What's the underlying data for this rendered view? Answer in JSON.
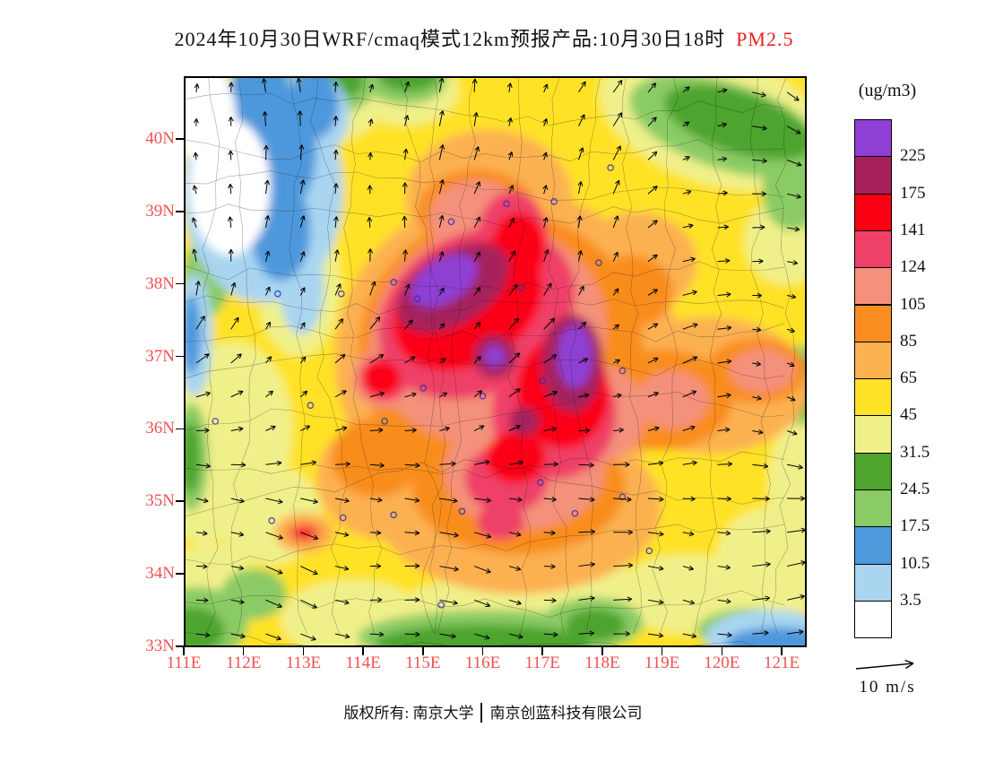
{
  "title": {
    "text": "2024年10月30日WRF/cmaq模式12km预报产品:10月30日18时",
    "pollutant": "PM2.5"
  },
  "axes": {
    "lat_ticks": [
      "40N",
      "39N",
      "38N",
      "37N",
      "36N",
      "35N",
      "34N",
      "33N"
    ],
    "lon_ticks": [
      "111E",
      "112E",
      "113E",
      "114E",
      "115E",
      "116E",
      "117E",
      "118E",
      "119E",
      "120E",
      "121E"
    ],
    "tick_color": "#f25050"
  },
  "colorbar": {
    "unit": "(ug/m3)",
    "levels": [
      "225",
      "175",
      "141",
      "124",
      "105",
      "85",
      "65",
      "45",
      "31.5",
      "24.5",
      "17.5",
      "10.5",
      "3.5"
    ],
    "colors": [
      "#8f3fd4",
      "#a6215c",
      "#fb0012",
      "#ef4067",
      "#f4917c",
      "#f98d1f",
      "#fcb151",
      "#ffe226",
      "#f0f08a",
      "#4ea42d",
      "#8bcb65",
      "#4e98dc",
      "#a9d5f1",
      "#ffffff"
    ]
  },
  "wind_legend": {
    "label": "10 m/s"
  },
  "footer": {
    "left": "版权所有: 南京大学",
    "right": "南京创蓝科技有限公司"
  },
  "map": {
    "extent": {
      "lon_min": 111,
      "lon_max": 121.42,
      "lat_min": 33.0,
      "lat_max": 40.87
    },
    "base_color": "#ffe226",
    "heat_blobs": [
      [
        111.8,
        36.0,
        1.0,
        1.2,
        0,
        "#f0f08a"
      ],
      [
        112.4,
        34.8,
        0.9,
        0.7,
        0,
        "#f0f08a"
      ],
      [
        111.4,
        33.7,
        0.8,
        0.7,
        0,
        "#f0f08a"
      ],
      [
        113.8,
        33.35,
        1.2,
        0.55,
        0,
        "#f0f08a"
      ],
      [
        116.2,
        33.4,
        1.7,
        0.55,
        0,
        "#f0f08a"
      ],
      [
        119.4,
        33.7,
        1.1,
        0.55,
        0,
        "#f0f08a"
      ],
      [
        120.8,
        34.1,
        0.9,
        0.8,
        0,
        "#f0f08a"
      ],
      [
        121.3,
        35.2,
        0.5,
        0.9,
        0,
        "#f0f08a"
      ],
      [
        119.9,
        40.3,
        2.0,
        0.9,
        18,
        "#f0f08a"
      ],
      [
        121.1,
        38.6,
        0.7,
        0.6,
        0,
        "#f0f08a"
      ],
      [
        113.0,
        40.5,
        1.3,
        0.6,
        0,
        "#f0f08a"
      ],
      [
        112.9,
        38.0,
        0.7,
        1.0,
        0,
        "#f0f08a"
      ],
      [
        111.3,
        35.0,
        0.6,
        0.6,
        0,
        "#f0f08a"
      ],
      [
        118.0,
        33.6,
        1.0,
        0.5,
        0,
        "#f0f08a"
      ],
      [
        112.0,
        40.8,
        0.8,
        0.5,
        0,
        "#f0f08a"
      ],
      [
        114.7,
        40.7,
        0.9,
        0.5,
        0,
        "#f0f08a"
      ],
      [
        120.1,
        40.2,
        1.7,
        0.6,
        18,
        "#8bcb65"
      ],
      [
        121.2,
        39.3,
        0.5,
        0.55,
        0,
        "#8bcb65"
      ],
      [
        116.1,
        33.1,
        2.2,
        0.38,
        0,
        "#8bcb65"
      ],
      [
        117.85,
        33.3,
        0.85,
        0.35,
        0,
        "#8bcb65"
      ],
      [
        111.2,
        33.3,
        0.85,
        0.5,
        0,
        "#8bcb65"
      ],
      [
        112.15,
        33.7,
        0.55,
        0.35,
        0,
        "#8bcb65"
      ],
      [
        111.1,
        35.6,
        0.28,
        0.75,
        0,
        "#8bcb65"
      ],
      [
        113.35,
        40.75,
        0.85,
        0.4,
        0,
        "#8bcb65"
      ],
      [
        112.6,
        40.9,
        0.5,
        0.3,
        0,
        "#8bcb65"
      ],
      [
        121.35,
        36.6,
        0.4,
        0.55,
        0,
        "#8bcb65"
      ],
      [
        120.5,
        33.2,
        0.9,
        0.3,
        0,
        "#8bcb65"
      ],
      [
        111.35,
        38.1,
        0.4,
        0.55,
        0,
        "#8bcb65"
      ],
      [
        114.7,
        40.85,
        0.7,
        0.35,
        0,
        "#8bcb65"
      ],
      [
        120.3,
        40.25,
        1.3,
        0.42,
        18,
        "#4ea42d"
      ],
      [
        116.0,
        33.02,
        1.8,
        0.26,
        0,
        "#4ea42d"
      ],
      [
        111.1,
        33.2,
        0.55,
        0.32,
        0,
        "#4ea42d"
      ],
      [
        117.9,
        33.27,
        0.5,
        0.22,
        0,
        "#4ea42d"
      ],
      [
        113.45,
        40.82,
        0.55,
        0.26,
        0,
        "#4ea42d"
      ],
      [
        111.08,
        35.6,
        0.16,
        0.5,
        0,
        "#4ea42d"
      ],
      [
        121.4,
        36.6,
        0.26,
        0.38,
        0,
        "#4ea42d"
      ],
      [
        120.55,
        33.12,
        0.6,
        0.2,
        0,
        "#4ea42d"
      ],
      [
        114.75,
        40.9,
        0.5,
        0.22,
        0,
        "#4ea42d"
      ],
      [
        112.3,
        39.3,
        1.35,
        1.55,
        0,
        "#a9d5f1"
      ],
      [
        113.1,
        40.35,
        0.65,
        0.6,
        0,
        "#a9d5f1"
      ],
      [
        111.15,
        37.3,
        0.3,
        0.85,
        0,
        "#a9d5f1"
      ],
      [
        120.85,
        33.1,
        1.1,
        0.38,
        0,
        "#a9d5f1"
      ],
      [
        112.95,
        37.95,
        0.38,
        0.65,
        0,
        "#a9d5f1"
      ],
      [
        112.35,
        39.85,
        0.85,
        1.0,
        0,
        "#4e98dc"
      ],
      [
        112.6,
        38.75,
        0.5,
        0.7,
        0,
        "#4e98dc"
      ],
      [
        113.15,
        40.5,
        0.42,
        0.48,
        0,
        "#4e98dc"
      ],
      [
        111.1,
        37.3,
        0.16,
        0.55,
        0,
        "#4e98dc"
      ],
      [
        120.95,
        33.02,
        0.85,
        0.22,
        0,
        "#4e98dc"
      ],
      [
        112.25,
        40.7,
        0.5,
        0.45,
        0,
        "#4e98dc"
      ],
      [
        111.75,
        39.35,
        0.68,
        0.95,
        0,
        "#ffffff"
      ],
      [
        111.3,
        40.35,
        0.55,
        0.65,
        0,
        "#ffffff"
      ],
      [
        116.4,
        37.0,
        2.9,
        2.3,
        -15,
        "#fcb151"
      ],
      [
        116.6,
        34.9,
        2.4,
        1.2,
        0,
        "#fcb151"
      ],
      [
        119.8,
        36.6,
        1.7,
        0.95,
        0,
        "#fcb151"
      ],
      [
        116.1,
        39.2,
        1.4,
        0.95,
        0,
        "#fcb151"
      ],
      [
        114.4,
        35.3,
        1.2,
        0.85,
        0,
        "#fcb151"
      ],
      [
        118.6,
        38.3,
        1.0,
        0.7,
        0,
        "#fcb151"
      ],
      [
        113.0,
        34.55,
        0.5,
        0.28,
        0,
        "#fcb151"
      ],
      [
        116.3,
        37.1,
        2.4,
        1.9,
        -15,
        "#f98d1f"
      ],
      [
        116.6,
        35.2,
        1.8,
        0.95,
        0,
        "#f98d1f"
      ],
      [
        119.0,
        36.4,
        1.2,
        0.7,
        0,
        "#f98d1f"
      ],
      [
        120.6,
        36.8,
        0.85,
        0.45,
        0,
        "#f98d1f"
      ],
      [
        115.9,
        39.0,
        1.0,
        0.6,
        0,
        "#f98d1f"
      ],
      [
        118.5,
        37.9,
        0.7,
        0.5,
        0,
        "#f98d1f"
      ],
      [
        114.2,
        35.6,
        0.75,
        0.55,
        0,
        "#f98d1f"
      ],
      [
        113.0,
        34.55,
        0.32,
        0.16,
        0,
        "#f98d1f"
      ],
      [
        116.1,
        37.3,
        2.0,
        1.5,
        -20,
        "#f4917c"
      ],
      [
        116.7,
        35.4,
        1.35,
        0.8,
        0,
        "#f4917c"
      ],
      [
        117.8,
        36.2,
        0.95,
        0.7,
        0,
        "#f4917c"
      ],
      [
        115.9,
        38.9,
        0.8,
        0.55,
        0,
        "#f4917c"
      ],
      [
        120.7,
        36.8,
        0.55,
        0.3,
        0,
        "#f4917c"
      ],
      [
        119.2,
        36.4,
        0.6,
        0.4,
        0,
        "#f4917c"
      ],
      [
        114.35,
        36.7,
        0.55,
        0.42,
        0,
        "#f4917c"
      ],
      [
        113.0,
        34.55,
        0.24,
        0.12,
        0,
        "#f4917c"
      ],
      [
        115.9,
        37.6,
        1.75,
        1.1,
        -30,
        "#ef4067"
      ],
      [
        117.2,
        36.2,
        1.05,
        0.9,
        0,
        "#ef4067"
      ],
      [
        116.4,
        35.3,
        0.7,
        0.48,
        0,
        "#ef4067"
      ],
      [
        116.5,
        38.6,
        0.6,
        0.7,
        0,
        "#ef4067"
      ],
      [
        114.35,
        36.7,
        0.42,
        0.32,
        0,
        "#ef4067"
      ],
      [
        116.3,
        34.7,
        0.4,
        0.25,
        0,
        "#ef4067"
      ],
      [
        115.75,
        37.7,
        1.35,
        0.8,
        -32,
        "#fb0012"
      ],
      [
        117.35,
        36.5,
        0.78,
        0.78,
        0,
        "#fb0012"
      ],
      [
        116.55,
        35.6,
        0.5,
        0.36,
        0,
        "#fb0012"
      ],
      [
        116.6,
        38.5,
        0.45,
        0.5,
        0,
        "#fb0012"
      ],
      [
        114.3,
        36.7,
        0.32,
        0.24,
        0,
        "#fb0012"
      ],
      [
        113.0,
        34.55,
        0.2,
        0.09,
        0,
        "#fb0012"
      ],
      [
        115.5,
        37.95,
        1.05,
        0.5,
        -32,
        "#a6215c"
      ],
      [
        117.5,
        36.9,
        0.52,
        0.68,
        0,
        "#a6215c"
      ],
      [
        116.2,
        37.0,
        0.36,
        0.3,
        0,
        "#a6215c"
      ],
      [
        116.7,
        36.1,
        0.26,
        0.2,
        0,
        "#a6215c"
      ],
      [
        115.35,
        38.05,
        0.62,
        0.3,
        -32,
        "#8f3fd4"
      ],
      [
        117.55,
        37.0,
        0.3,
        0.44,
        0,
        "#8f3fd4"
      ],
      [
        116.2,
        37.0,
        0.18,
        0.15,
        0,
        "#8f3fd4"
      ]
    ],
    "city_markers": [
      [
        114.5,
        38.03
      ],
      [
        115.47,
        38.87
      ],
      [
        116.4,
        39.12
      ],
      [
        117.2,
        39.15
      ],
      [
        118.15,
        39.62
      ],
      [
        113.62,
        37.87
      ],
      [
        114.9,
        37.8
      ],
      [
        116.65,
        37.95
      ],
      [
        117.95,
        38.3
      ],
      [
        112.55,
        37.87
      ],
      [
        113.65,
        34.76
      ],
      [
        114.35,
        36.1
      ],
      [
        115.0,
        36.56
      ],
      [
        116.0,
        36.45
      ],
      [
        117.0,
        36.66
      ],
      [
        118.35,
        36.8
      ],
      [
        115.65,
        34.85
      ],
      [
        116.97,
        35.25
      ],
      [
        118.35,
        35.05
      ],
      [
        112.45,
        34.72
      ],
      [
        111.5,
        36.1
      ],
      [
        113.1,
        36.32
      ],
      [
        114.5,
        34.8
      ],
      [
        117.55,
        34.82
      ],
      [
        115.3,
        33.55
      ],
      [
        118.8,
        34.3
      ]
    ]
  }
}
